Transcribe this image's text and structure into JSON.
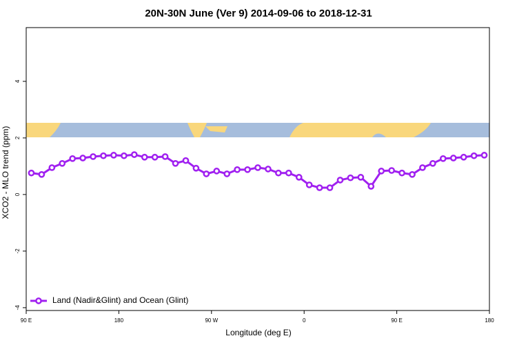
{
  "chart_data": {
    "type": "line",
    "title": "20N-30N June (Ver 9)   2014-09-06 to 2018-12-31",
    "x_label": "Longitude (deg E)",
    "y_label": "XCO2 - MLO trend (ppm)",
    "x": [
      95,
      105,
      115,
      125,
      135,
      145,
      155,
      165,
      175,
      185,
      195,
      205,
      215,
      225,
      235,
      245,
      255,
      265,
      275,
      285,
      295,
      305,
      315,
      325,
      335,
      345,
      355,
      365,
      375,
      385,
      395,
      405,
      415,
      425,
      435,
      445,
      455,
      465,
      475,
      485,
      495,
      505,
      515,
      525,
      535
    ],
    "series": [
      {
        "name": "Land (Nadir&Glint) and Ocean (Glint)",
        "color": "#a020f0",
        "values": [
          0.76,
          0.71,
          0.95,
          1.1,
          1.27,
          1.29,
          1.34,
          1.37,
          1.39,
          1.37,
          1.41,
          1.32,
          1.32,
          1.34,
          1.1,
          1.2,
          0.93,
          0.73,
          0.83,
          0.73,
          0.88,
          0.88,
          0.95,
          0.9,
          0.76,
          0.76,
          0.61,
          0.34,
          0.24,
          0.24,
          0.51,
          0.59,
          0.61,
          0.29,
          0.83,
          0.85,
          0.76,
          0.71,
          0.95,
          1.1,
          1.27,
          1.29,
          1.32,
          1.37,
          1.39
        ]
      }
    ],
    "xlim": [
      90,
      540
    ],
    "xticks": [
      {
        "value": 90,
        "label": "90 E"
      },
      180,
      {
        "value": 270,
        "label": "90 W"
      },
      {
        "value": 360,
        "label": "0"
      },
      {
        "value": 450,
        "label": "90 E"
      },
      {
        "value": 540,
        "label": "180"
      }
    ],
    "ylim": [
      -4.1,
      5.9
    ],
    "yticks": [
      -4,
      -2,
      0,
      2,
      4
    ],
    "legend": "bottom-left"
  }
}
